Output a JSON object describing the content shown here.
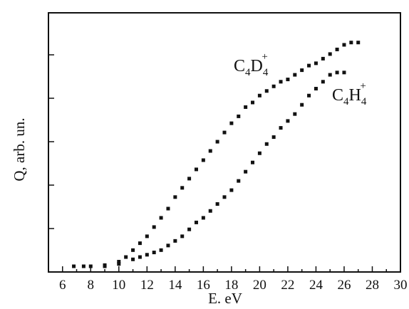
{
  "chart_data": {
    "type": "scatter",
    "xlabel": "E. eV",
    "ylabel": "Q, arb. un.",
    "xlim": [
      5,
      30
    ],
    "ylim": [
      0,
      1
    ],
    "x_ticks": [
      "6",
      "8",
      "10",
      "12",
      "14",
      "16",
      "18",
      "20",
      "22",
      "24",
      "26",
      "28",
      "30"
    ],
    "y_tick_labels_shown": false,
    "grid": false,
    "marker_color": "#111111",
    "series": [
      {
        "name": "C4D4+",
        "label_parts": {
          "base1": "C",
          "sub1": "4",
          "base2": "D",
          "sub2": "4",
          "sup": "+"
        },
        "x": [
          6.8,
          8.0,
          9.0,
          10.0,
          10.5,
          11.0,
          11.5,
          12.0,
          12.5,
          13.0,
          13.5,
          14.0,
          14.5,
          15.0,
          15.5,
          16.0,
          16.5,
          17.0,
          17.5,
          18.0,
          18.5,
          19.0,
          19.5,
          20.0,
          20.5,
          21.0,
          21.5,
          22.0,
          22.5,
          23.0,
          23.5,
          24.0,
          24.5,
          25.0,
          25.5,
          26.0,
          26.5,
          27.0
        ],
        "y": [
          0.0,
          0.0,
          0.005,
          0.02,
          0.04,
          0.07,
          0.1,
          0.13,
          0.17,
          0.21,
          0.25,
          0.3,
          0.34,
          0.38,
          0.42,
          0.46,
          0.5,
          0.54,
          0.58,
          0.62,
          0.65,
          0.69,
          0.71,
          0.74,
          0.76,
          0.78,
          0.8,
          0.81,
          0.83,
          0.85,
          0.87,
          0.88,
          0.9,
          0.92,
          0.94,
          0.96,
          0.97,
          0.97
        ]
      },
      {
        "name": "C4H4+",
        "label_parts": {
          "base1": "C",
          "sub1": "4",
          "base2": "H",
          "sub2": "4",
          "sup": "+"
        },
        "x": [
          7.5,
          9.0,
          10.0,
          11.0,
          11.5,
          12.0,
          12.5,
          13.0,
          13.5,
          14.0,
          14.5,
          15.0,
          15.5,
          16.0,
          16.5,
          17.0,
          17.5,
          18.0,
          18.5,
          19.0,
          19.5,
          20.0,
          20.5,
          21.0,
          21.5,
          22.0,
          22.5,
          23.0,
          23.5,
          24.0,
          24.5,
          25.0,
          25.5,
          26.0
        ],
        "y": [
          0.0,
          0.0,
          0.01,
          0.03,
          0.04,
          0.05,
          0.06,
          0.07,
          0.09,
          0.11,
          0.13,
          0.16,
          0.19,
          0.21,
          0.24,
          0.27,
          0.3,
          0.33,
          0.37,
          0.41,
          0.45,
          0.49,
          0.53,
          0.56,
          0.6,
          0.63,
          0.66,
          0.7,
          0.74,
          0.77,
          0.8,
          0.83,
          0.84,
          0.84
        ]
      }
    ]
  }
}
